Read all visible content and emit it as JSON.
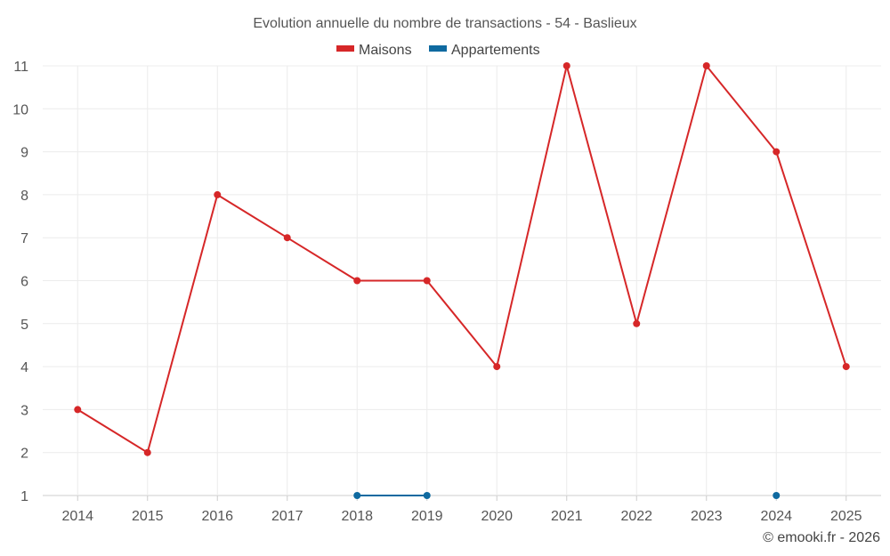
{
  "credit": "© emooki.fr - 2026",
  "colors": {
    "maisons": "#d62728",
    "appartements": "#0f6aa0",
    "grid": "#ececec",
    "axis": "#cccccc"
  },
  "chart_data": {
    "type": "line",
    "title": "Evolution annuelle du nombre de transactions - 54 - Baslieux",
    "legend_position": "top-center",
    "categories": [
      "2014",
      "2015",
      "2016",
      "2017",
      "2018",
      "2019",
      "2020",
      "2021",
      "2022",
      "2023",
      "2024",
      "2025"
    ],
    "ylim": [
      1,
      11
    ],
    "yticks": [
      "1",
      "2",
      "3",
      "4",
      "5",
      "6",
      "7",
      "8",
      "9",
      "10",
      "11"
    ],
    "grid": true,
    "series": [
      {
        "name": "Maisons",
        "values": [
          3,
          2,
          8,
          7,
          6,
          6,
          4,
          11,
          5,
          11,
          9,
          4
        ]
      },
      {
        "name": "Appartements",
        "values": [
          null,
          null,
          null,
          null,
          1,
          1,
          null,
          null,
          null,
          null,
          1,
          null
        ]
      }
    ]
  }
}
